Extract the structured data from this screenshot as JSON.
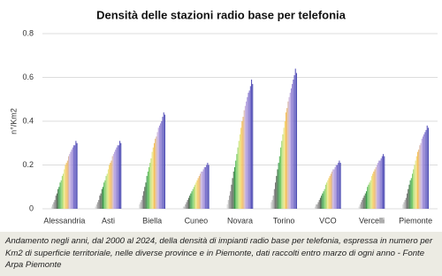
{
  "chart_data": {
    "type": "bar",
    "title": "Densità delle stazioni radio base per telefonia",
    "y_label": "n°/Km2",
    "categories": [
      "Alessandria",
      "Asti",
      "Biella",
      "Cuneo",
      "Novara",
      "Torino",
      "VCO",
      "Vercelli",
      "Piemonte"
    ],
    "ylim": [
      0,
      0.8
    ],
    "yticks": [
      0,
      0.2,
      0.4,
      0.6,
      0.8
    ],
    "grid": true,
    "series": [
      {
        "color": "#d9d9d9",
        "values": [
          0.01,
          0.01,
          0.02,
          0.01,
          0.02,
          0.03,
          0.01,
          0.01,
          0.02
        ]
      },
      {
        "color": "#bfbfbf",
        "values": [
          0.02,
          0.02,
          0.03,
          0.01,
          0.04,
          0.04,
          0.02,
          0.02,
          0.03
        ]
      },
      {
        "color": "#a6a6a6",
        "values": [
          0.03,
          0.03,
          0.04,
          0.02,
          0.06,
          0.06,
          0.02,
          0.03,
          0.04
        ]
      },
      {
        "color": "#8c8c8c",
        "values": [
          0.04,
          0.04,
          0.06,
          0.03,
          0.08,
          0.09,
          0.03,
          0.04,
          0.05
        ]
      },
      {
        "color": "#737373",
        "values": [
          0.06,
          0.06,
          0.08,
          0.04,
          0.11,
          0.12,
          0.04,
          0.05,
          0.07
        ]
      },
      {
        "color": "#5a6b5a",
        "values": [
          0.07,
          0.07,
          0.1,
          0.05,
          0.14,
          0.15,
          0.05,
          0.06,
          0.09
        ]
      },
      {
        "color": "#4e7d52",
        "values": [
          0.09,
          0.09,
          0.12,
          0.06,
          0.17,
          0.18,
          0.06,
          0.07,
          0.11
        ]
      },
      {
        "color": "#3f9a4e",
        "values": [
          0.1,
          0.1,
          0.15,
          0.07,
          0.19,
          0.21,
          0.07,
          0.08,
          0.13
        ]
      },
      {
        "color": "#5cb85c",
        "values": [
          0.12,
          0.12,
          0.17,
          0.08,
          0.22,
          0.24,
          0.08,
          0.1,
          0.14
        ]
      },
      {
        "color": "#7ccd6a",
        "values": [
          0.13,
          0.13,
          0.19,
          0.09,
          0.25,
          0.28,
          0.09,
          0.11,
          0.16
        ]
      },
      {
        "color": "#a3d977",
        "values": [
          0.15,
          0.15,
          0.21,
          0.1,
          0.28,
          0.31,
          0.11,
          0.12,
          0.18
        ]
      },
      {
        "color": "#c8e27a",
        "values": [
          0.16,
          0.16,
          0.23,
          0.11,
          0.31,
          0.34,
          0.12,
          0.13,
          0.2
        ]
      },
      {
        "color": "#e7e78a",
        "values": [
          0.18,
          0.18,
          0.26,
          0.12,
          0.34,
          0.37,
          0.13,
          0.15,
          0.22
        ]
      },
      {
        "color": "#f2d66e",
        "values": [
          0.2,
          0.2,
          0.28,
          0.13,
          0.37,
          0.4,
          0.14,
          0.16,
          0.24
        ]
      },
      {
        "color": "#f5c15a",
        "values": [
          0.21,
          0.21,
          0.3,
          0.14,
          0.4,
          0.44,
          0.15,
          0.17,
          0.26
        ]
      },
      {
        "color": "#e9b872",
        "values": [
          0.22,
          0.22,
          0.32,
          0.15,
          0.42,
          0.46,
          0.16,
          0.18,
          0.27
        ]
      },
      {
        "color": "#d9b8a8",
        "values": [
          0.24,
          0.24,
          0.33,
          0.16,
          0.45,
          0.49,
          0.17,
          0.19,
          0.29
        ]
      },
      {
        "color": "#c9b3d9",
        "values": [
          0.25,
          0.25,
          0.35,
          0.17,
          0.47,
          0.51,
          0.18,
          0.2,
          0.3
        ]
      },
      {
        "color": "#b7a3e0",
        "values": [
          0.26,
          0.26,
          0.37,
          0.17,
          0.49,
          0.53,
          0.18,
          0.21,
          0.32
        ]
      },
      {
        "color": "#a493d9",
        "values": [
          0.27,
          0.27,
          0.38,
          0.18,
          0.51,
          0.55,
          0.19,
          0.22,
          0.33
        ]
      },
      {
        "color": "#9383d4",
        "values": [
          0.28,
          0.28,
          0.39,
          0.19,
          0.53,
          0.57,
          0.2,
          0.22,
          0.34
        ]
      },
      {
        "color": "#7e73cc",
        "values": [
          0.29,
          0.29,
          0.4,
          0.19,
          0.54,
          0.59,
          0.2,
          0.23,
          0.35
        ]
      },
      {
        "color": "#6a63c4",
        "values": [
          0.29,
          0.29,
          0.42,
          0.2,
          0.56,
          0.61,
          0.21,
          0.24,
          0.36
        ]
      },
      {
        "color": "#5a55bb",
        "values": [
          0.31,
          0.31,
          0.44,
          0.21,
          0.59,
          0.64,
          0.22,
          0.25,
          0.38
        ]
      },
      {
        "color": "#4848b0",
        "values": [
          0.3,
          0.3,
          0.43,
          0.2,
          0.57,
          0.62,
          0.21,
          0.24,
          0.37
        ]
      }
    ]
  },
  "caption": "Andamento negli anni, dal 2000 al 2024, della densità di impianti radio base per telefonia, espressa in numero per Km2 di superficie territoriale, nelle diverse province e in Piemonte, dati raccolti entro marzo di ogni anno - Fonte Arpa Piemonte"
}
